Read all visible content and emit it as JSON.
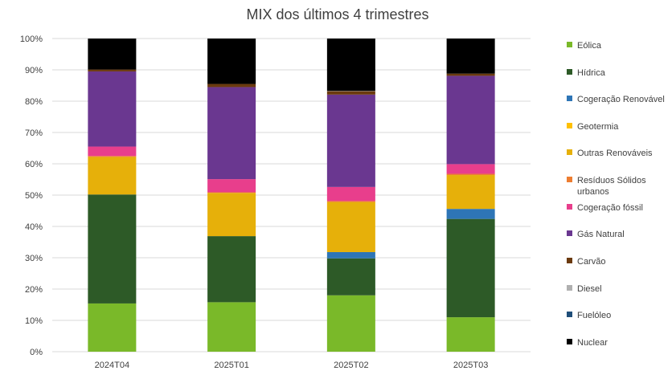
{
  "chart_data": {
    "type": "bar",
    "stacked": true,
    "title": "MIX dos últimos 4 trimestres",
    "xlabel": "",
    "ylabel": "",
    "ylim": [
      0,
      100
    ],
    "y_ticks": [
      "0%",
      "10%",
      "20%",
      "30%",
      "40%",
      "50%",
      "60%",
      "70%",
      "80%",
      "90%",
      "100%"
    ],
    "grid": true,
    "legend_position": "right",
    "categories": [
      "2024T04",
      "2025T01",
      "2025T02",
      "2025T03"
    ],
    "series": [
      {
        "name": "Eólica",
        "color": "#7ab929",
        "values": [
          15.4,
          15.8,
          18.0,
          11.0
        ]
      },
      {
        "name": "Hídrica",
        "color": "#2d5a27",
        "values": [
          34.8,
          21.1,
          11.8,
          31.4
        ]
      },
      {
        "name": "Cogeração Renovável",
        "color": "#2e75b6",
        "values": [
          0,
          0,
          2.0,
          3.2
        ]
      },
      {
        "name": "Geotermia",
        "color": "#ffc000",
        "values": [
          0,
          0,
          0,
          0
        ]
      },
      {
        "name": "Outras Renováveis",
        "color": "#e6b00a",
        "values": [
          12.0,
          13.8,
          16.0,
          10.8
        ]
      },
      {
        "name": "Resíduos Sólidos urbanos",
        "label_lines": [
          "Resíduos Sólidos",
          "urbanos"
        ],
        "color": "#ed7d31",
        "values": [
          0.3,
          0.2,
          0.3,
          0.4
        ]
      },
      {
        "name": "Cogeração fóssil",
        "color": "#e83e8c",
        "values": [
          3.0,
          4.2,
          4.5,
          3.1
        ]
      },
      {
        "name": "Gás Natural",
        "color": "#6a3790",
        "values": [
          24.0,
          29.4,
          29.5,
          28.2
        ]
      },
      {
        "name": "Carvão",
        "color": "#6b3a0e",
        "values": [
          0.6,
          1.0,
          1.1,
          0.7
        ]
      },
      {
        "name": "Diesel",
        "color": "#b0b0b0",
        "values": [
          0,
          0,
          0.1,
          0
        ]
      },
      {
        "name": "Fuelóleo",
        "color": "#1f4e79",
        "values": [
          0,
          0,
          0,
          0
        ]
      },
      {
        "name": "Nuclear",
        "color": "#000000",
        "values": [
          9.9,
          14.5,
          16.7,
          11.2
        ]
      }
    ]
  }
}
